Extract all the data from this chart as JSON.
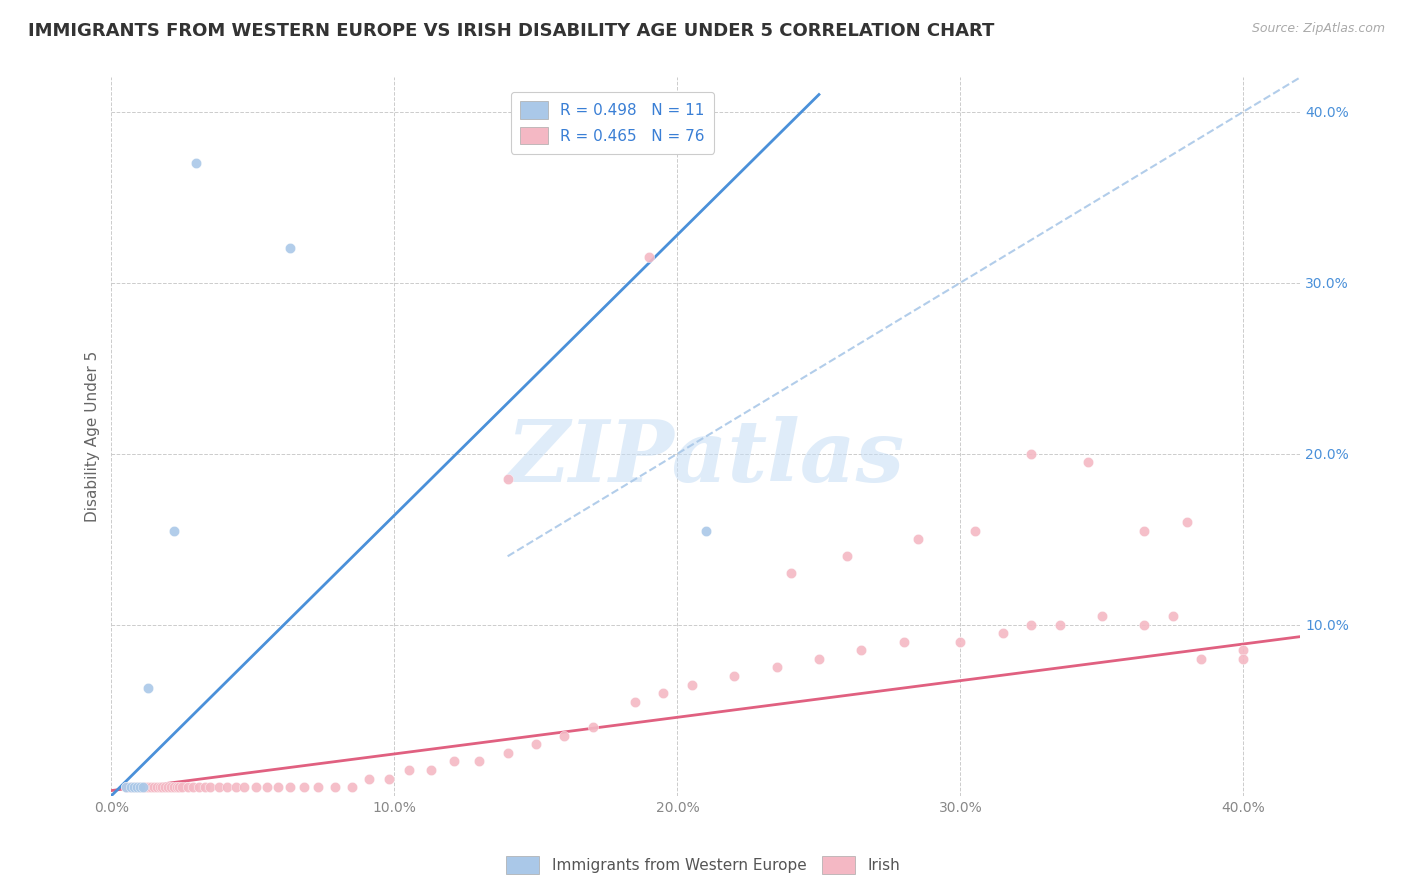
{
  "title": "IMMIGRANTS FROM WESTERN EUROPE VS IRISH DISABILITY AGE UNDER 5 CORRELATION CHART",
  "source": "Source: ZipAtlas.com",
  "ylabel": "Disability Age Under 5",
  "xlim": [
    0.0,
    0.42
  ],
  "ylim": [
    0.0,
    0.42
  ],
  "x_ticks": [
    0.0,
    0.1,
    0.2,
    0.3,
    0.4
  ],
  "x_tick_labels": [
    "0.0%",
    "10.0%",
    "20.0%",
    "30.0%",
    "40.0%"
  ],
  "y_ticks": [
    0.0,
    0.1,
    0.2,
    0.3,
    0.4
  ],
  "y_tick_labels": [
    "",
    "10.0%",
    "20.0%",
    "30.0%",
    "40.0%"
  ],
  "legend_blue_label": "Immigrants from Western Europe",
  "legend_pink_label": "Irish",
  "blue_R": "0.498",
  "blue_N": "11",
  "pink_R": "0.465",
  "pink_N": "76",
  "blue_color": "#aac8e8",
  "blue_line_color": "#4a90d9",
  "pink_color": "#f4b8c4",
  "pink_line_color": "#e06080",
  "blue_scatter_x": [
    0.005,
    0.007,
    0.008,
    0.009,
    0.01,
    0.011,
    0.013,
    0.022,
    0.03,
    0.063,
    0.21
  ],
  "blue_scatter_y": [
    0.005,
    0.005,
    0.005,
    0.005,
    0.005,
    0.005,
    0.063,
    0.155,
    0.37,
    0.32,
    0.155
  ],
  "blue_solid_line_x": [
    0.0,
    0.25
  ],
  "blue_solid_line_y": [
    0.0,
    0.41
  ],
  "blue_dash_line_x": [
    0.14,
    0.42
  ],
  "blue_dash_line_y": [
    0.14,
    0.42
  ],
  "pink_scatter_x": [
    0.005,
    0.006,
    0.007,
    0.008,
    0.009,
    0.01,
    0.011,
    0.012,
    0.013,
    0.014,
    0.015,
    0.016,
    0.017,
    0.018,
    0.019,
    0.02,
    0.021,
    0.022,
    0.023,
    0.024,
    0.025,
    0.027,
    0.029,
    0.031,
    0.033,
    0.035,
    0.038,
    0.041,
    0.044,
    0.047,
    0.051,
    0.055,
    0.059,
    0.063,
    0.068,
    0.073,
    0.079,
    0.085,
    0.091,
    0.098,
    0.105,
    0.113,
    0.121,
    0.13,
    0.14,
    0.15,
    0.16,
    0.17,
    0.185,
    0.195,
    0.205,
    0.22,
    0.235,
    0.25,
    0.265,
    0.28,
    0.3,
    0.315,
    0.325,
    0.335,
    0.35,
    0.365,
    0.375,
    0.385,
    0.4,
    0.24,
    0.26,
    0.285,
    0.305,
    0.325,
    0.345,
    0.365,
    0.38,
    0.4,
    0.19,
    0.14
  ],
  "pink_scatter_y": [
    0.005,
    0.005,
    0.005,
    0.005,
    0.005,
    0.005,
    0.005,
    0.005,
    0.005,
    0.005,
    0.005,
    0.005,
    0.005,
    0.005,
    0.005,
    0.005,
    0.005,
    0.005,
    0.005,
    0.005,
    0.005,
    0.005,
    0.005,
    0.005,
    0.005,
    0.005,
    0.005,
    0.005,
    0.005,
    0.005,
    0.005,
    0.005,
    0.005,
    0.005,
    0.005,
    0.005,
    0.005,
    0.005,
    0.01,
    0.01,
    0.015,
    0.015,
    0.02,
    0.02,
    0.025,
    0.03,
    0.035,
    0.04,
    0.055,
    0.06,
    0.065,
    0.07,
    0.075,
    0.08,
    0.085,
    0.09,
    0.09,
    0.095,
    0.1,
    0.1,
    0.105,
    0.1,
    0.105,
    0.08,
    0.085,
    0.13,
    0.14,
    0.15,
    0.155,
    0.2,
    0.195,
    0.155,
    0.16,
    0.08,
    0.315,
    0.185
  ],
  "pink_line_x": [
    0.0,
    0.42
  ],
  "pink_line_y": [
    0.003,
    0.093
  ],
  "watermark_text": "ZIPatlas",
  "background_color": "#ffffff",
  "grid_color": "#cccccc",
  "title_fontsize": 13,
  "axis_label_fontsize": 11,
  "tick_fontsize": 10,
  "legend_fontsize": 11
}
